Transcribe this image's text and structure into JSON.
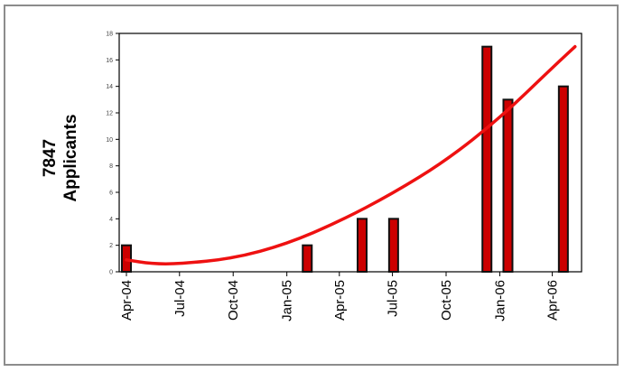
{
  "chart_data": {
    "type": "bar",
    "ylabel": "7847 Applicants",
    "ylabel_lines": [
      "7847",
      "Applicants"
    ],
    "ylim": [
      0,
      18
    ],
    "yticks": [
      0,
      2,
      4,
      6,
      8,
      10,
      12,
      14,
      16,
      18
    ],
    "ytick_labels": [
      "0",
      "2",
      "4",
      "6",
      "8",
      "10",
      "12",
      "14",
      "16",
      "18"
    ],
    "xticks": [
      {
        "label": "Apr-04",
        "date": "2004-04-01"
      },
      {
        "label": "Jul-04",
        "date": "2004-07-01"
      },
      {
        "label": "Oct-04",
        "date": "2004-10-01"
      },
      {
        "label": "Jan-05",
        "date": "2005-01-01"
      },
      {
        "label": "Apr-05",
        "date": "2005-04-01"
      },
      {
        "label": "Jul-05",
        "date": "2005-07-01"
      },
      {
        "label": "Oct-05",
        "date": "2005-10-01"
      },
      {
        "label": "Jan-06",
        "date": "2006-01-01"
      },
      {
        "label": "Apr-06",
        "date": "2006-04-01"
      }
    ],
    "x_range": [
      "2004-04-01",
      "2006-05-15"
    ],
    "bars": [
      {
        "date": "2004-04-01",
        "value": 2
      },
      {
        "date": "2005-02-05",
        "value": 2
      },
      {
        "date": "2005-05-10",
        "value": 4
      },
      {
        "date": "2005-07-03",
        "value": 4
      },
      {
        "date": "2005-12-10",
        "value": 17
      },
      {
        "date": "2006-01-15",
        "value": 13
      },
      {
        "date": "2006-04-20",
        "value": 14
      }
    ],
    "trendline": {
      "type": "polynomial",
      "points": [
        {
          "date": "2004-04-01",
          "value": 0.9
        },
        {
          "date": "2004-05-15",
          "value": 0.6
        },
        {
          "date": "2004-07-01",
          "value": 0.6
        },
        {
          "date": "2004-10-01",
          "value": 1.0
        },
        {
          "date": "2005-01-01",
          "value": 2.1
        },
        {
          "date": "2005-04-01",
          "value": 3.8
        },
        {
          "date": "2005-07-01",
          "value": 5.9
        },
        {
          "date": "2005-10-01",
          "value": 8.4
        },
        {
          "date": "2006-01-01",
          "value": 11.6
        },
        {
          "date": "2006-04-01",
          "value": 15.4
        },
        {
          "date": "2006-05-10",
          "value": 17.0
        }
      ]
    },
    "grid": false,
    "legend": "none",
    "colors": {
      "bar_fill": "#cc0000",
      "bar_edge": "#111111",
      "trend_line": "#ee1111",
      "axis": "#000000"
    }
  }
}
